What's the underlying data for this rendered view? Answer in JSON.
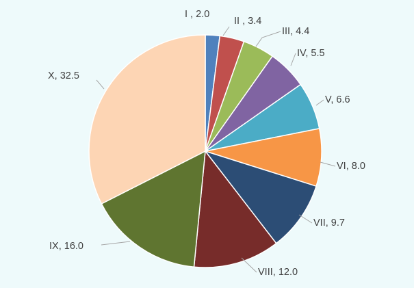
{
  "chart_data": {
    "type": "pie",
    "title": "",
    "start": "top",
    "direction": "clockwise",
    "legend": "none",
    "slices": [
      {
        "label": "I , 2.0",
        "name": "I",
        "value": 2.0,
        "color": "#4f81bd"
      },
      {
        "label": "II , 3.4",
        "name": "II",
        "value": 3.4,
        "color": "#c0504d"
      },
      {
        "label": "III, 4.4",
        "name": "III",
        "value": 4.4,
        "color": "#9bbb59"
      },
      {
        "label": "IV, 5.5",
        "name": "IV",
        "value": 5.5,
        "color": "#8064a2"
      },
      {
        "label": "V, 6.6",
        "name": "V",
        "value": 6.6,
        "color": "#4bacc6"
      },
      {
        "label": "VI, 8.0",
        "name": "VI",
        "value": 8.0,
        "color": "#f79646"
      },
      {
        "label": "VII, 9.7",
        "name": "VII",
        "value": 9.7,
        "color": "#2c4d75"
      },
      {
        "label": "VIII, 12.0",
        "name": "VIII",
        "value": 12.0,
        "color": "#772c2a"
      },
      {
        "label": "IX, 16.0",
        "name": "IX",
        "value": 16.0,
        "color": "#5f7530"
      },
      {
        "label": "X, 32.5",
        "name": "X",
        "value": 32.5,
        "color": "#fdd5b4"
      }
    ]
  }
}
